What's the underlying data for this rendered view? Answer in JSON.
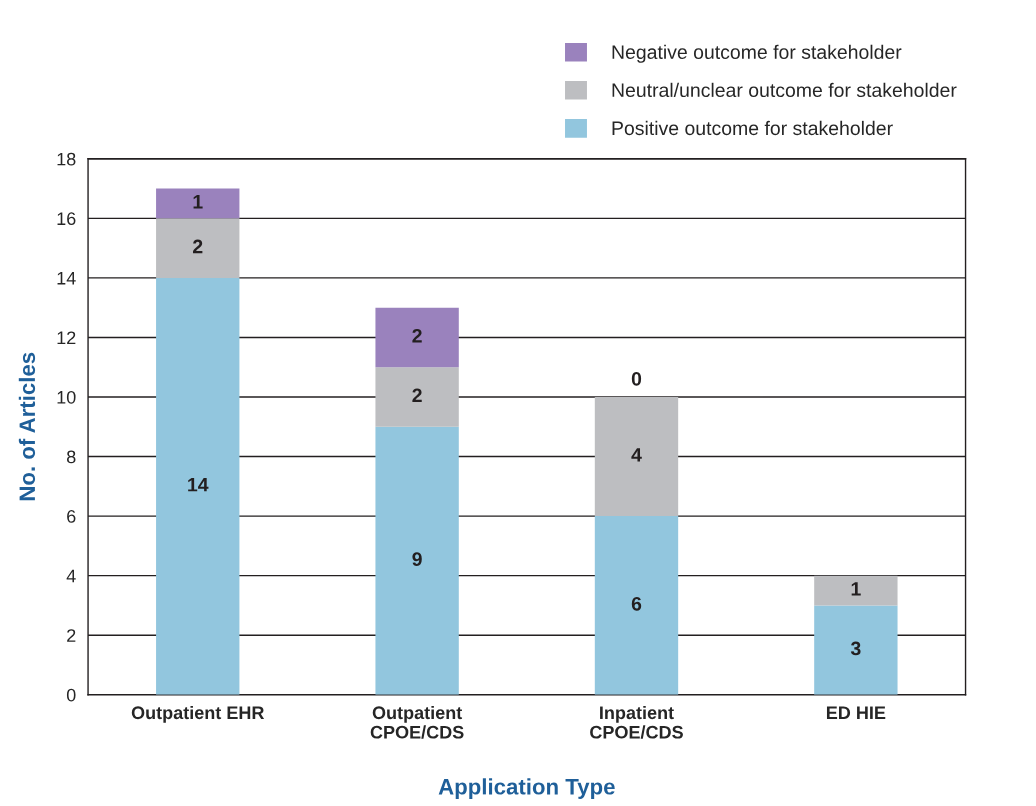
{
  "chart_data": {
    "type": "bar",
    "stacked": true,
    "xlabel": "Application Type",
    "ylabel": "No. of Articles",
    "categories": [
      "Outpatient EHR",
      "Outpatient\nCPOE/CDS",
      "Inpatient\nCPOE/CDS",
      "ED HIE"
    ],
    "series": [
      {
        "name": "Positive outcome for stakeholder",
        "color": "#92c6de",
        "values": [
          14,
          9,
          6,
          3
        ],
        "value_labels": [
          "14",
          "9",
          "6",
          "3"
        ]
      },
      {
        "name": "Neutral/unclear outcome for stakeholder",
        "color": "#bdbec1",
        "values": [
          2,
          2,
          4,
          1
        ],
        "value_labels": [
          "2",
          "2",
          "4",
          "1"
        ]
      },
      {
        "name": "Negative outcome for stakeholder",
        "color": "#9a82bd",
        "values": [
          1,
          2,
          0,
          0
        ],
        "value_labels": [
          "1",
          "2",
          "0",
          null
        ]
      }
    ],
    "ylim": [
      0,
      18
    ],
    "yticks": [
      0,
      2,
      4,
      6,
      8,
      10,
      12,
      14,
      16,
      18
    ],
    "grid": "y",
    "legend": "top right"
  }
}
